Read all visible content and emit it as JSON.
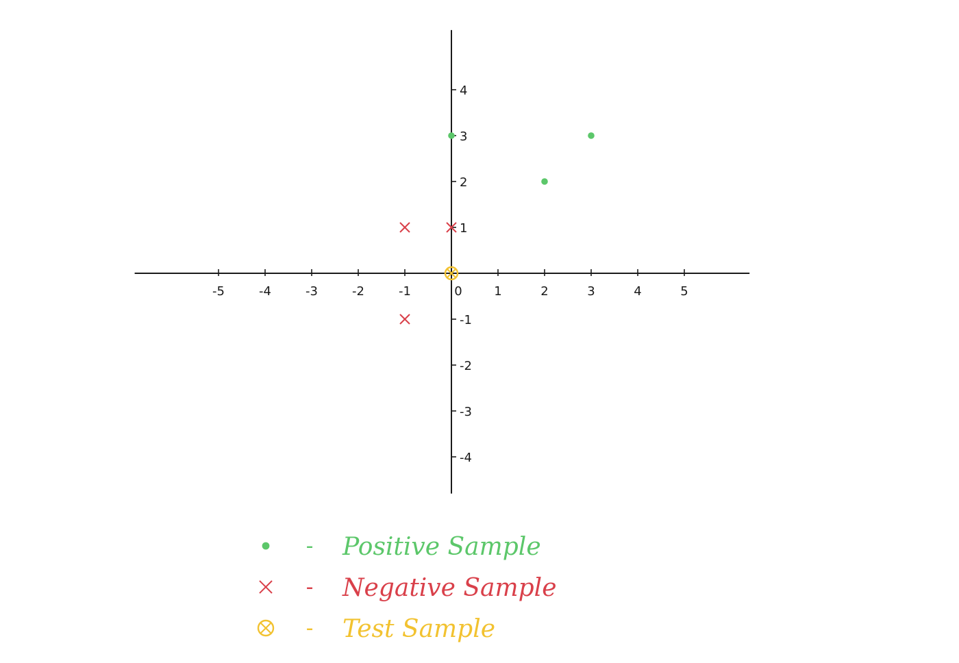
{
  "chart_data": {
    "type": "scatter",
    "title": "",
    "xlabel": "",
    "ylabel": "",
    "xlim": [
      -6.8,
      6.4
    ],
    "ylim": [
      -4.8,
      5.3
    ],
    "x_ticks": [
      -5,
      -4,
      -3,
      -2,
      -1,
      0,
      1,
      2,
      3,
      4,
      5
    ],
    "x_tick_labels": [
      "-5",
      "-4",
      "-3",
      "-2",
      "-1",
      "0",
      "1",
      "2",
      "3",
      "4",
      "5"
    ],
    "y_ticks": [
      4,
      3,
      2,
      1,
      -1,
      -2,
      -3,
      -4
    ],
    "y_tick_labels": [
      "4",
      "3",
      "2",
      "1",
      "-1",
      "-2",
      "-3",
      "-4"
    ],
    "grid": false,
    "legend_position": "bottom-left",
    "series": [
      {
        "name": "Positive Sample",
        "marker": "dot",
        "color": "#5cc76a",
        "points": [
          {
            "x": 0,
            "y": 3
          },
          {
            "x": 2,
            "y": 2
          },
          {
            "x": 3,
            "y": 3
          }
        ]
      },
      {
        "name": "Negative Sample",
        "marker": "cross",
        "color": "#d9404a",
        "points": [
          {
            "x": -1,
            "y": 1
          },
          {
            "x": 0,
            "y": 1
          },
          {
            "x": -1,
            "y": -1
          }
        ]
      },
      {
        "name": "Test Sample",
        "marker": "circled-cross",
        "color": "#f2c230",
        "points": [
          {
            "x": 0,
            "y": 0
          }
        ]
      }
    ],
    "legend": [
      {
        "symbol": "dot",
        "dash": "-",
        "label": "Positive Sample",
        "color": "#5cc76a"
      },
      {
        "symbol": "cross",
        "dash": "-",
        "label": "Negative Sample",
        "color": "#d9404a"
      },
      {
        "symbol": "circled-cross",
        "dash": "-",
        "label": "Test Sample",
        "color": "#f2c230"
      }
    ],
    "axis_color": "#1a1a1a"
  }
}
